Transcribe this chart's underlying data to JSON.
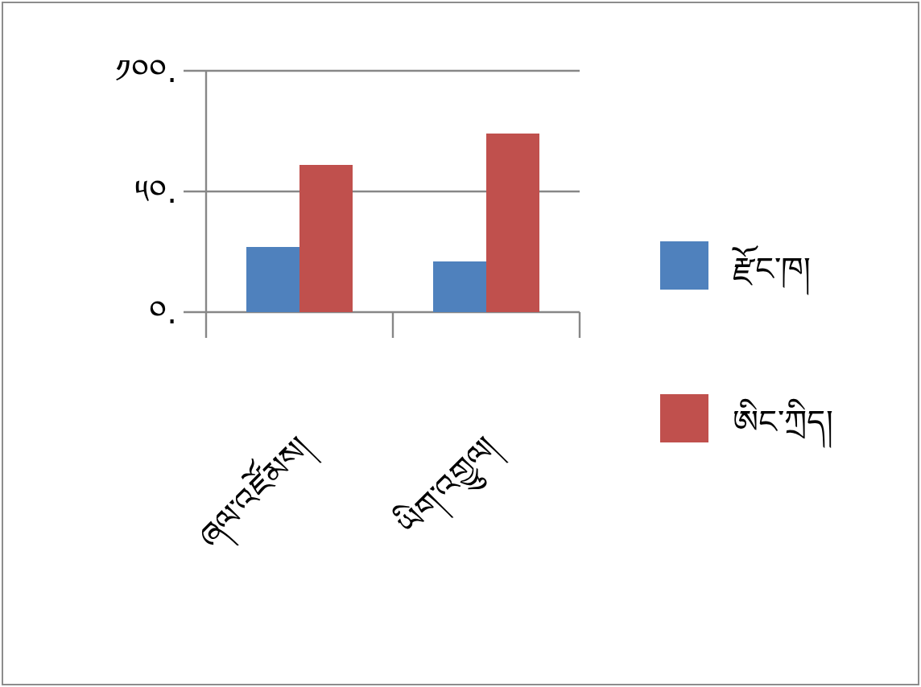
{
  "chart_data": {
    "type": "bar",
    "categories": [
      "ཞལ་འཛོམས།",
      "ཡིག་འགྱུལ།"
    ],
    "series": [
      {
        "name": "རྫོང་ཁ།",
        "color": "#4f81bd",
        "values": [
          27,
          21
        ]
      },
      {
        "name": "ཨིང་ཀྲིད།",
        "color": "#c0504d",
        "values": [
          61,
          74
        ]
      }
    ],
    "ylim": [
      0,
      100
    ],
    "yticks": [
      {
        "value": 0,
        "label": "༠."
      },
      {
        "value": 50,
        "label": "༥༠."
      },
      {
        "value": 100,
        "label": "༡༠༠."
      }
    ],
    "grid": "y",
    "legend": "right"
  }
}
